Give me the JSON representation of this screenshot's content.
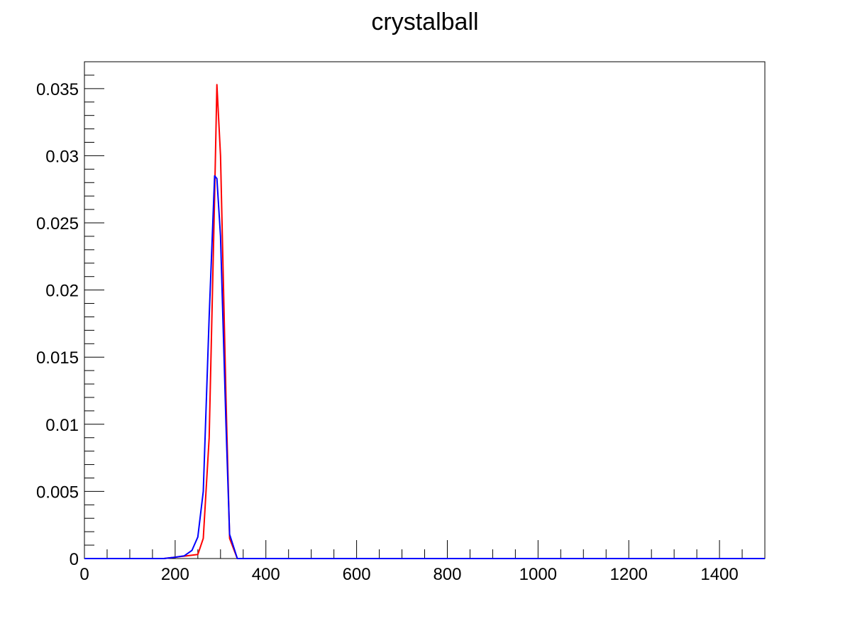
{
  "chart_data": {
    "type": "line",
    "title": "crystalball",
    "xlabel": "",
    "ylabel": "",
    "xlim": [
      0,
      1500
    ],
    "ylim": [
      0,
      0.037
    ],
    "x_ticks": [
      0,
      200,
      400,
      600,
      800,
      1000,
      1200,
      1400
    ],
    "y_ticks": [
      0,
      0.005,
      0.01,
      0.015,
      0.02,
      0.025,
      0.03,
      0.035
    ],
    "x_tick_labels": [
      "0",
      "200",
      "400",
      "600",
      "800",
      "1000",
      "1200",
      "1400"
    ],
    "y_tick_labels": [
      "0",
      "0.005",
      "0.01",
      "0.015",
      "0.02",
      "0.025",
      "0.03",
      "0.035"
    ],
    "grid": false,
    "legend": "none",
    "series": [
      {
        "color": "#ff0000",
        "x": [
          0,
          100,
          175,
          200,
          225,
          250,
          262,
          275,
          287,
          292,
          300,
          312,
          320,
          337,
          400,
          800,
          1500
        ],
        "y": [
          0,
          0,
          0,
          0.0001,
          0.0002,
          0.0003,
          0.0015,
          0.009,
          0.027,
          0.0353,
          0.03,
          0.012,
          0.0015,
          0,
          0,
          0,
          0
        ]
      },
      {
        "color": "#0000ff",
        "x": [
          0,
          100,
          175,
          200,
          220,
          237,
          250,
          262,
          275,
          287,
          292,
          300,
          312,
          320,
          337,
          400,
          800,
          1500
        ],
        "y": [
          0,
          0,
          0,
          0.0001,
          0.0002,
          0.0006,
          0.0016,
          0.005,
          0.018,
          0.0285,
          0.0283,
          0.024,
          0.01,
          0.0018,
          0,
          0,
          0,
          0
        ]
      }
    ]
  }
}
